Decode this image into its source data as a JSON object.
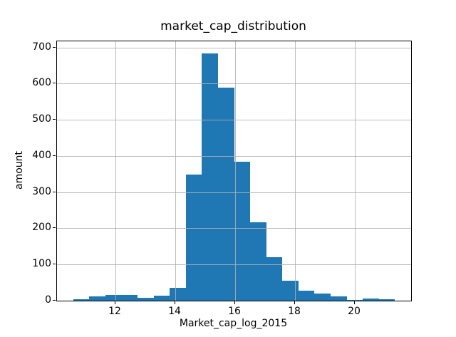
{
  "window": {
    "background": "#ffffff"
  },
  "chart_data": {
    "type": "bar",
    "chart_kind": "histogram",
    "title": "market_cap_distribution",
    "xlabel": "Market_cap_log_2015",
    "ylabel": "amount",
    "bin_edges": [
      10.58,
      11.12,
      11.66,
      12.19,
      12.73,
      13.27,
      13.81,
      14.34,
      14.88,
      15.42,
      15.96,
      16.49,
      17.03,
      17.57,
      18.11,
      18.64,
      19.18,
      19.72,
      20.26,
      20.79,
      21.33
    ],
    "counts": [
      3,
      11,
      16,
      16,
      8,
      14,
      35,
      348,
      683,
      589,
      385,
      217,
      120,
      55,
      28,
      19,
      11,
      2,
      5,
      3
    ],
    "xticks": [
      12,
      14,
      16,
      18,
      20
    ],
    "yticks": [
      0,
      100,
      200,
      300,
      400,
      500,
      600,
      700
    ],
    "xlim": [
      10.04,
      21.87
    ],
    "ylim": [
      0,
      717
    ],
    "grid": true,
    "legend": null,
    "colors": {
      "bar": "#1f77b4",
      "grid": "#b0b0b0",
      "spine": "#000000",
      "text": "#000000",
      "background": "#ffffff"
    }
  }
}
